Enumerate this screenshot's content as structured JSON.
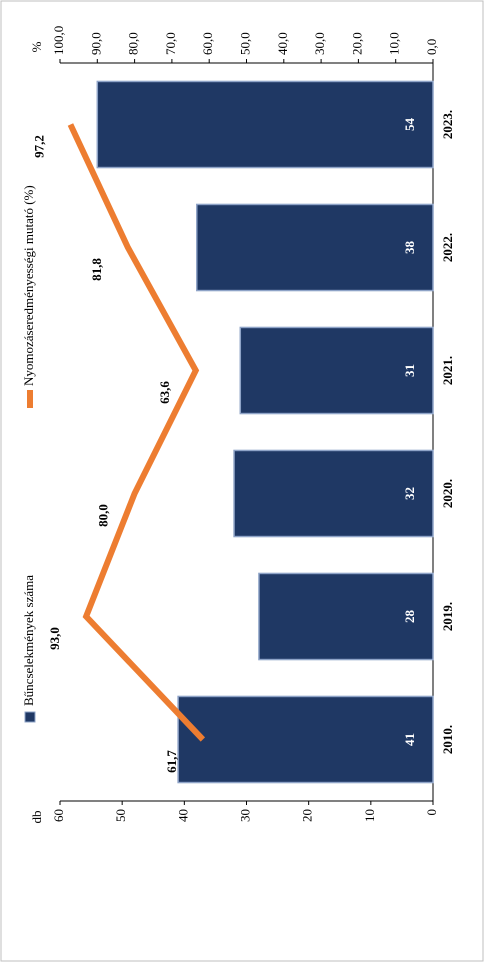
{
  "chart_data": {
    "type": "combo",
    "categories": [
      "2010.",
      "2019.",
      "2020.",
      "2021.",
      "2022.",
      "2023."
    ],
    "y_label": "db",
    "y2_label": "%",
    "ylim": [
      0,
      60
    ],
    "yticks": [
      0,
      10,
      20,
      30,
      40,
      50,
      60
    ],
    "y2lim": [
      0,
      100
    ],
    "y2ticks": [
      {
        "value": 0,
        "label": "0,0"
      },
      {
        "value": 10,
        "label": "10,0"
      },
      {
        "value": 20,
        "label": "20,0"
      },
      {
        "value": 30,
        "label": "30,0"
      },
      {
        "value": 40,
        "label": "40,0"
      },
      {
        "value": 50,
        "label": "50,0"
      },
      {
        "value": 60,
        "label": "60,0"
      },
      {
        "value": 70,
        "label": "70,0"
      },
      {
        "value": 80,
        "label": "80,0"
      },
      {
        "value": 90,
        "label": "90,0"
      },
      {
        "value": 100,
        "label": "100,0"
      }
    ],
    "series": [
      {
        "name": "Bűncselekmények száma",
        "type": "bar",
        "color": "#1f3864",
        "values": [
          41,
          28,
          32,
          31,
          38,
          54
        ]
      },
      {
        "name": "Nyomozáseredményességi mutató (%)",
        "type": "line",
        "axis": "y2",
        "color": "#ed7d31",
        "values": [
          61.7,
          93.0,
          80.0,
          63.6,
          81.8,
          97.2
        ],
        "value_labels": [
          "61,7",
          "93,0",
          "80,0",
          "63,6",
          "81,8",
          "97,2"
        ]
      }
    ]
  }
}
